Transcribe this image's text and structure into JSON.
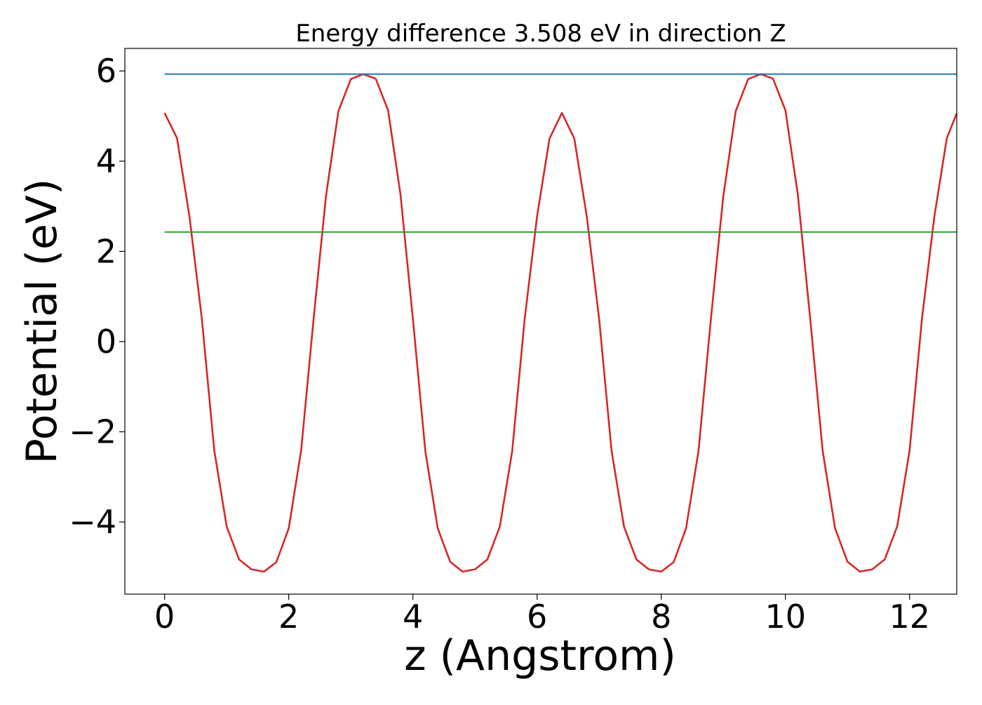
{
  "chart_data": {
    "type": "line",
    "title": "Energy difference 3.508 eV in direction Z",
    "xlabel": "z (Angstrom)",
    "ylabel": "Potential (eV)",
    "xlim": [
      -0.64,
      12.76
    ],
    "ylim": [
      -5.6,
      6.5
    ],
    "x_ticks": [
      0,
      2,
      4,
      6,
      8,
      10,
      12
    ],
    "y_ticks": [
      -4,
      -2,
      0,
      2,
      4,
      6
    ],
    "x_tick_labels": [
      "0",
      "2",
      "4",
      "6",
      "8",
      "10",
      "12"
    ],
    "y_tick_labels": [
      "−4",
      "−2",
      "0",
      "2",
      "4",
      "6"
    ],
    "grid": false,
    "legend": "none",
    "series": [
      {
        "color": "#d62728",
        "x": [
          0,
          0.2,
          0.4,
          0.6,
          0.8,
          1.0,
          1.2,
          1.4,
          1.6,
          1.8,
          2.0,
          2.2,
          2.4,
          2.6,
          2.8,
          3.0,
          3.2,
          3.4,
          3.6,
          3.8,
          4.0,
          4.2,
          4.4,
          4.6,
          4.8,
          5.0,
          5.2,
          5.4,
          5.6,
          5.8,
          6.0,
          6.2,
          6.4,
          6.6,
          6.8,
          7.0,
          7.2,
          7.4,
          7.6,
          7.8,
          8.0,
          8.2,
          8.4,
          8.6,
          8.8,
          9.0,
          9.2,
          9.4,
          9.6,
          9.8,
          10.0,
          10.2,
          10.4,
          10.6,
          10.8,
          11.0,
          11.2,
          11.4,
          11.6,
          11.8,
          12.0,
          12.2,
          12.4,
          12.6,
          12.76
        ],
        "y": [
          5.07,
          4.51,
          2.78,
          0.51,
          -2.41,
          -4.1,
          -4.83,
          -5.05,
          -5.1,
          -4.89,
          -4.14,
          -2.41,
          0.5,
          3.23,
          5.11,
          5.82,
          5.93,
          5.83,
          5.13,
          3.26,
          0.5,
          -2.43,
          -4.14,
          -4.88,
          -5.1,
          -5.05,
          -4.83,
          -4.1,
          -2.42,
          0.5,
          2.78,
          4.5,
          5.07,
          4.5,
          2.78,
          0.5,
          -2.42,
          -4.1,
          -4.83,
          -5.05,
          -5.1,
          -4.89,
          -4.14,
          -2.43,
          0.5,
          3.23,
          5.11,
          5.82,
          5.93,
          5.83,
          5.13,
          3.26,
          0.5,
          -2.42,
          -4.14,
          -4.88,
          -5.1,
          -5.05,
          -4.83,
          -4.1,
          -2.42,
          0.51,
          2.78,
          4.51,
          5.06
        ]
      },
      {
        "color": "#1f77b4",
        "x": [
          0,
          12.76
        ],
        "y": [
          5.93,
          5.93
        ]
      },
      {
        "color": "#2ca02c",
        "x": [
          0,
          12.76
        ],
        "y": [
          2.43,
          2.43
        ]
      }
    ]
  }
}
